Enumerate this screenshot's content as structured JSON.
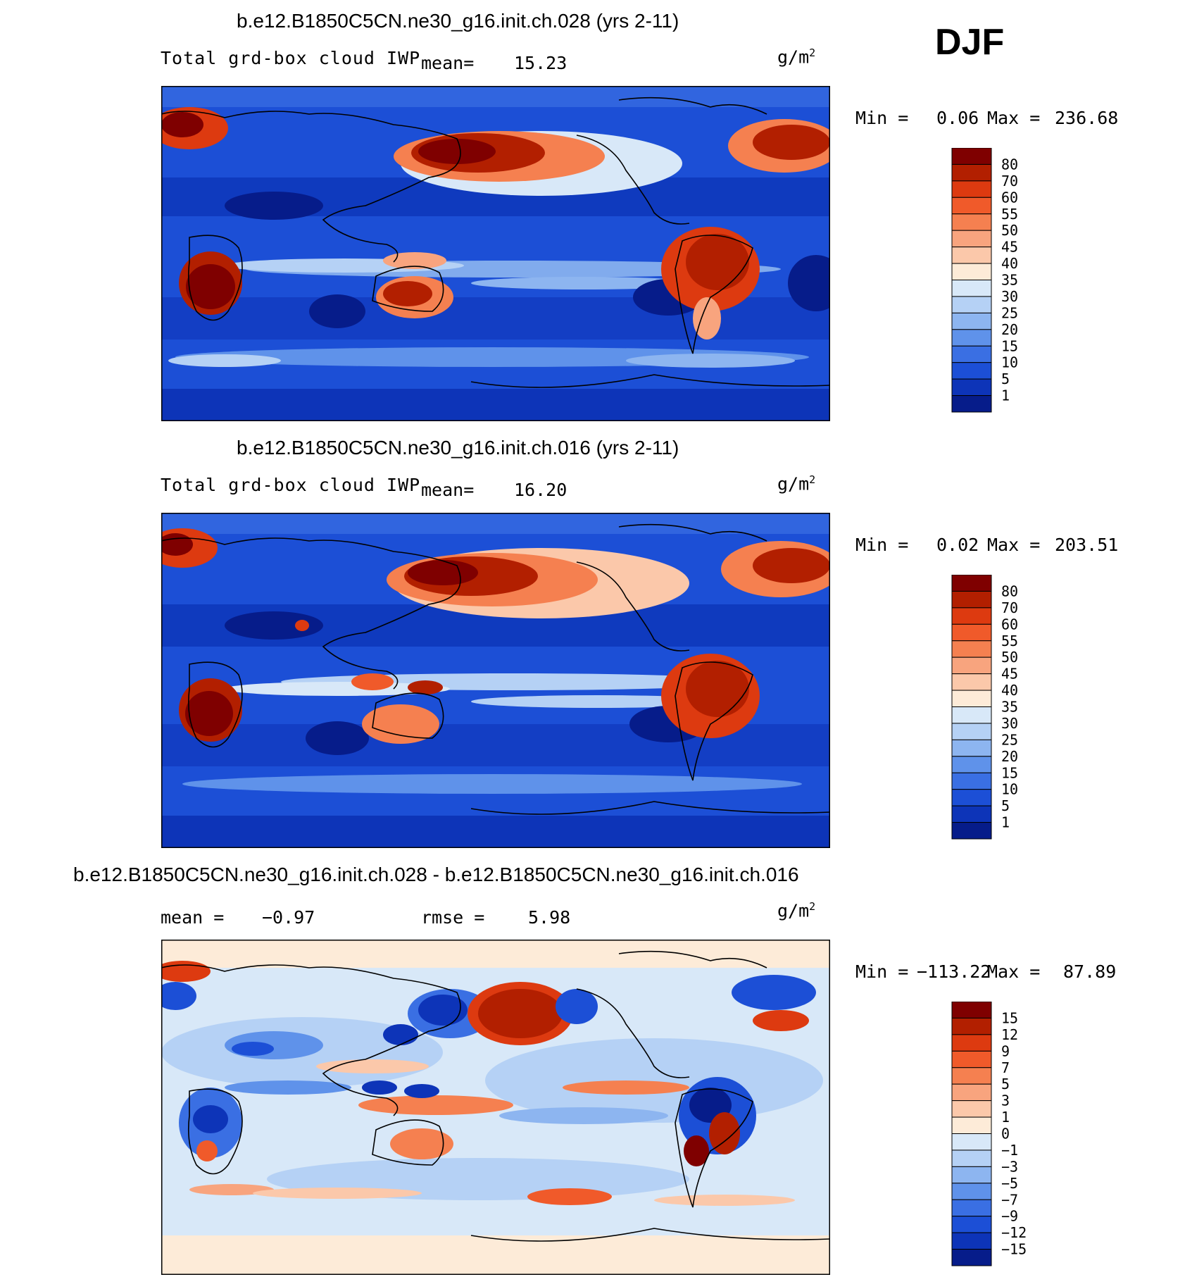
{
  "season": "DJF",
  "panels": [
    {
      "title": "b.e12.B1850C5CN.ne30_g16.init.ch.028 (yrs 2-11)",
      "variable": "Total grd-box cloud IWP",
      "stat1_label": "mean=",
      "stat1_value": "15.23",
      "units_base": "g/m",
      "units_exp": "2",
      "min_label": "Min =",
      "min_value": "0.06",
      "max_label": "Max =",
      "max_value": "236.68"
    },
    {
      "title": "b.e12.B1850C5CN.ne30_g16.init.ch.016 (yrs 2-11)",
      "variable": "Total grd-box cloud IWP",
      "stat1_label": "mean=",
      "stat1_value": "16.20",
      "units_base": "g/m",
      "units_exp": "2",
      "min_label": "Min =",
      "min_value": "0.02",
      "max_label": "Max =",
      "max_value": "203.51"
    },
    {
      "title": "b.e12.B1850C5CN.ne30_g16.init.ch.028 - b.e12.B1850C5CN.ne30_g16.init.ch.016",
      "stat1_label": "mean =",
      "stat1_value": "−0.97",
      "stat2_label": "rmse =",
      "stat2_value": "5.98",
      "units_base": "g/m",
      "units_exp": "2",
      "min_label": "Min =",
      "min_value": "−113.22",
      "max_label": "Max =",
      "max_value": "87.89"
    }
  ],
  "chart_data": [
    {
      "type": "heatmap",
      "title": "b.e12.B1850C5CN.ne30_g16.init.ch.028 (yrs 2-11)",
      "variable": "Total grd-box cloud IWP",
      "mean": 15.23,
      "min": 0.06,
      "max": 236.68,
      "colorbar_levels": [
        "80",
        "70",
        "60",
        "55",
        "50",
        "45",
        "40",
        "35",
        "30",
        "25",
        "20",
        "15",
        "10",
        "5",
        "1"
      ],
      "colorbar_colors": [
        "#7f0000",
        "#b21f00",
        "#dd3a10",
        "#f05a2a",
        "#f58050",
        "#f8a47e",
        "#fbc8aa",
        "#fdebd8",
        "#d8e8f8",
        "#b5d1f5",
        "#8db5f0",
        "#5f92ea",
        "#3a6fe3",
        "#1c4fd6",
        "#0d34b8",
        "#061c8a"
      ]
    },
    {
      "type": "heatmap",
      "title": "b.e12.B1850C5CN.ne30_g16.init.ch.016 (yrs 2-11)",
      "variable": "Total grd-box cloud IWP",
      "mean": 16.2,
      "min": 0.02,
      "max": 203.51,
      "colorbar_levels": [
        "80",
        "70",
        "60",
        "55",
        "50",
        "45",
        "40",
        "35",
        "30",
        "25",
        "20",
        "15",
        "10",
        "5",
        "1"
      ],
      "colorbar_colors": [
        "#7f0000",
        "#b21f00",
        "#dd3a10",
        "#f05a2a",
        "#f58050",
        "#f8a47e",
        "#fbc8aa",
        "#fdebd8",
        "#d8e8f8",
        "#b5d1f5",
        "#8db5f0",
        "#5f92ea",
        "#3a6fe3",
        "#1c4fd6",
        "#0d34b8",
        "#061c8a"
      ]
    },
    {
      "type": "heatmap",
      "title": "b.e12.B1850C5CN.ne30_g16.init.ch.028 - b.e12.B1850C5CN.ne30_g16.init.ch.016",
      "mean": -0.97,
      "rmse": 5.98,
      "min": -113.22,
      "max": 87.89,
      "colorbar_levels": [
        "15",
        "12",
        "9",
        "7",
        "5",
        "3",
        "1",
        "0",
        "−1",
        "−3",
        "−5",
        "−7",
        "−9",
        "−12",
        "−15"
      ],
      "colorbar_colors": [
        "#7f0000",
        "#b21f00",
        "#dd3a10",
        "#f05a2a",
        "#f58050",
        "#f8a47e",
        "#fbc8aa",
        "#fdebd8",
        "#d8e8f8",
        "#b5d1f5",
        "#8db5f0",
        "#5f92ea",
        "#3a6fe3",
        "#1c4fd6",
        "#0d34b8",
        "#061c8a"
      ]
    }
  ]
}
